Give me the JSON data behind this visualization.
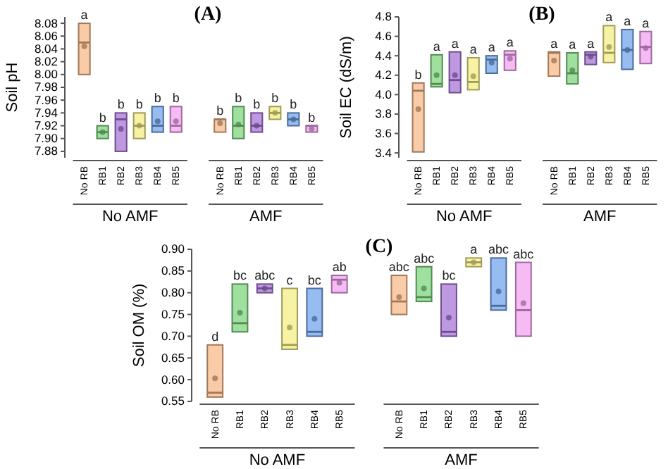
{
  "chart_data": [
    {
      "type": "box",
      "title": "(A)",
      "ylabel": "Soil pH",
      "categories": [
        "No RB",
        "RB1",
        "RB2",
        "RB3",
        "RB4",
        "RB5",
        "No RB",
        "RB1",
        "RB2",
        "RB3",
        "RB4",
        "RB5"
      ],
      "colors": [
        "#f7b98a",
        "#7fd67f",
        "#a877d8",
        "#f5ef86",
        "#73a6ee",
        "#f3a3f0",
        "#f7b98a",
        "#7fd67f",
        "#a877d8",
        "#f5ef86",
        "#73a6ee",
        "#f3a3f0"
      ],
      "boxes": [
        {
          "low": 8.0,
          "q1": 8.0,
          "median": 8.05,
          "q3": 8.08,
          "high": 8.08,
          "mean": 8.044
        },
        {
          "low": 7.9,
          "q1": 7.9,
          "median": 7.91,
          "q3": 7.92,
          "high": 7.92,
          "mean": 7.91
        },
        {
          "low": 7.88,
          "q1": 7.88,
          "median": 7.93,
          "q3": 7.94,
          "high": 7.94,
          "mean": 7.915
        },
        {
          "low": 7.9,
          "q1": 7.9,
          "median": 7.92,
          "q3": 7.94,
          "high": 7.94,
          "mean": 7.92
        },
        {
          "low": 7.91,
          "q1": 7.91,
          "median": 7.92,
          "q3": 7.95,
          "high": 7.95,
          "mean": 7.927
        },
        {
          "low": 7.91,
          "q1": 7.91,
          "median": 7.92,
          "q3": 7.95,
          "high": 7.95,
          "mean": 7.927
        },
        {
          "low": 7.91,
          "q1": 7.91,
          "median": 7.93,
          "q3": 7.93,
          "high": 7.93,
          "mean": 7.924
        },
        {
          "low": 7.9,
          "q1": 7.9,
          "median": 7.92,
          "q3": 7.95,
          "high": 7.95,
          "mean": 7.922
        },
        {
          "low": 7.91,
          "q1": 7.91,
          "median": 7.92,
          "q3": 7.94,
          "high": 7.94,
          "mean": 7.92
        },
        {
          "low": 7.93,
          "q1": 7.93,
          "median": 7.94,
          "q3": 7.95,
          "high": 7.95,
          "mean": 7.94
        },
        {
          "low": 7.92,
          "q1": 7.92,
          "median": 7.93,
          "q3": 7.94,
          "high": 7.94,
          "mean": 7.93
        },
        {
          "low": 7.91,
          "q1": 7.91,
          "median": 7.92,
          "q3": 7.92,
          "high": 7.92,
          "mean": 7.915
        }
      ],
      "value_labels": [
        "a",
        "b",
        "b",
        "b",
        "b",
        "b",
        "b",
        "b",
        "b",
        "b",
        "b",
        "b"
      ],
      "annotations": [
        "No AMF",
        "AMF"
      ],
      "ylim": [
        7.87,
        8.09
      ],
      "yticks": [
        7.88,
        {
          "value": 7.9,
          "label": "7.90"
        },
        7.92,
        7.94,
        7.96,
        7.98,
        {
          "value": 8,
          "label": "8.00"
        },
        8.02,
        8.04,
        8.06,
        8.08
      ]
    },
    {
      "type": "box",
      "title": "(B)",
      "ylabel": "Soil EC (dS/m)",
      "categories": [
        "No RB",
        "RB1",
        "RB2",
        "RB3",
        "RB4",
        "RB5",
        "No RB",
        "RB1",
        "RB2",
        "RB3",
        "RB4",
        "RB5"
      ],
      "colors": [
        "#f7b98a",
        "#7fd67f",
        "#a877d8",
        "#f5ef86",
        "#73a6ee",
        "#f3a3f0",
        "#f7b98a",
        "#7fd67f",
        "#a877d8",
        "#f5ef86",
        "#73a6ee",
        "#f3a3f0"
      ],
      "boxes": [
        {
          "low": 3.41,
          "q1": 3.41,
          "median": 4.04,
          "q3": 4.12,
          "high": 4.12,
          "mean": 3.85
        },
        {
          "low": 4.08,
          "q1": 4.08,
          "median": 4.11,
          "q3": 4.41,
          "high": 4.41,
          "mean": 4.2
        },
        {
          "low": 4.02,
          "q1": 4.02,
          "median": 4.15,
          "q3": 4.44,
          "high": 4.44,
          "mean": 4.2
        },
        {
          "low": 4.05,
          "q1": 4.05,
          "median": 4.13,
          "q3": 4.38,
          "high": 4.38,
          "mean": 4.19
        },
        {
          "low": 4.22,
          "q1": 4.22,
          "median": 4.36,
          "q3": 4.4,
          "high": 4.4,
          "mean": 4.33
        },
        {
          "low": 4.25,
          "q1": 4.25,
          "median": 4.41,
          "q3": 4.45,
          "high": 4.45,
          "mean": 4.37
        },
        {
          "low": 4.19,
          "q1": 4.19,
          "median": 4.43,
          "q3": 4.44,
          "high": 4.44,
          "mean": 4.35
        },
        {
          "low": 4.11,
          "q1": 4.11,
          "median": 4.22,
          "q3": 4.43,
          "high": 4.43,
          "mean": 4.25
        },
        {
          "low": 4.31,
          "q1": 4.31,
          "median": 4.41,
          "q3": 4.44,
          "high": 4.44,
          "mean": 4.39
        },
        {
          "low": 4.33,
          "q1": 4.33,
          "median": 4.43,
          "q3": 4.71,
          "high": 4.71,
          "mean": 4.49
        },
        {
          "low": 4.26,
          "q1": 4.26,
          "median": 4.46,
          "q3": 4.67,
          "high": 4.67,
          "mean": 4.46
        },
        {
          "low": 4.32,
          "q1": 4.32,
          "median": 4.49,
          "q3": 4.65,
          "high": 4.65,
          "mean": 4.48
        }
      ],
      "value_labels": [
        "b",
        "a",
        "a",
        "a",
        "a",
        "a",
        "a",
        "a",
        "a",
        "a",
        "a",
        "a"
      ],
      "annotations": [
        "No AMF",
        "AMF"
      ],
      "ylim": [
        3.35,
        4.8
      ],
      "yticks": [
        3.4,
        3.6,
        3.8,
        {
          "value": 4,
          "label": "4.0"
        },
        4.2,
        4.4,
        4.6,
        4.8
      ]
    },
    {
      "type": "box",
      "title": "(C)",
      "ylabel": "Soil OM (%)",
      "categories": [
        "No RB",
        "RB1",
        "RB2",
        "RB3",
        "RB4",
        "RB5",
        "No RB",
        "RB1",
        "RB2",
        "RB3",
        "RB4",
        "RB5"
      ],
      "colors": [
        "#f7b98a",
        "#7fd67f",
        "#a877d8",
        "#f5ef86",
        "#73a6ee",
        "#f3a3f0",
        "#f7b98a",
        "#7fd67f",
        "#a877d8",
        "#f5ef86",
        "#73a6ee",
        "#f3a3f0"
      ],
      "boxes": [
        {
          "low": 0.56,
          "q1": 0.56,
          "median": 0.57,
          "q3": 0.68,
          "high": 0.68,
          "mean": 0.603
        },
        {
          "low": 0.71,
          "q1": 0.71,
          "median": 0.73,
          "q3": 0.82,
          "high": 0.82,
          "mean": 0.754
        },
        {
          "low": 0.8,
          "q1": 0.8,
          "median": 0.81,
          "q3": 0.82,
          "high": 0.82,
          "mean": 0.81
        },
        {
          "low": 0.67,
          "q1": 0.67,
          "median": 0.68,
          "q3": 0.81,
          "high": 0.81,
          "mean": 0.72
        },
        {
          "low": 0.7,
          "q1": 0.7,
          "median": 0.71,
          "q3": 0.81,
          "high": 0.81,
          "mean": 0.74
        },
        {
          "low": 0.8,
          "q1": 0.8,
          "median": 0.83,
          "q3": 0.84,
          "high": 0.84,
          "mean": 0.823
        },
        {
          "low": 0.75,
          "q1": 0.75,
          "median": 0.78,
          "q3": 0.84,
          "high": 0.84,
          "mean": 0.79
        },
        {
          "low": 0.78,
          "q1": 0.78,
          "median": 0.79,
          "q3": 0.86,
          "high": 0.86,
          "mean": 0.81
        },
        {
          "low": 0.7,
          "q1": 0.7,
          "median": 0.71,
          "q3": 0.82,
          "high": 0.82,
          "mean": 0.743
        },
        {
          "low": 0.86,
          "q1": 0.86,
          "median": 0.87,
          "q3": 0.88,
          "high": 0.88,
          "mean": 0.87
        },
        {
          "low": 0.76,
          "q1": 0.76,
          "median": 0.77,
          "q3": 0.88,
          "high": 0.88,
          "mean": 0.803
        },
        {
          "low": 0.7,
          "q1": 0.7,
          "median": 0.76,
          "q3": 0.87,
          "high": 0.87,
          "mean": 0.776
        }
      ],
      "value_labels": [
        "d",
        "bc",
        "abc",
        "c",
        "bc",
        "ab",
        "abc",
        "abc",
        "bc",
        "a",
        "abc",
        "abc"
      ],
      "annotations": [
        "No AMF",
        "AMF"
      ],
      "ylim": [
        0.55,
        0.9
      ],
      "yticks": [
        0.55,
        {
          "value": 0.6,
          "label": "0.60"
        },
        0.65,
        {
          "value": 0.7,
          "label": "0.70"
        },
        0.75,
        {
          "value": 0.8,
          "label": "0.80"
        },
        0.85,
        {
          "value": 0.9,
          "label": "0.90"
        }
      ]
    }
  ]
}
